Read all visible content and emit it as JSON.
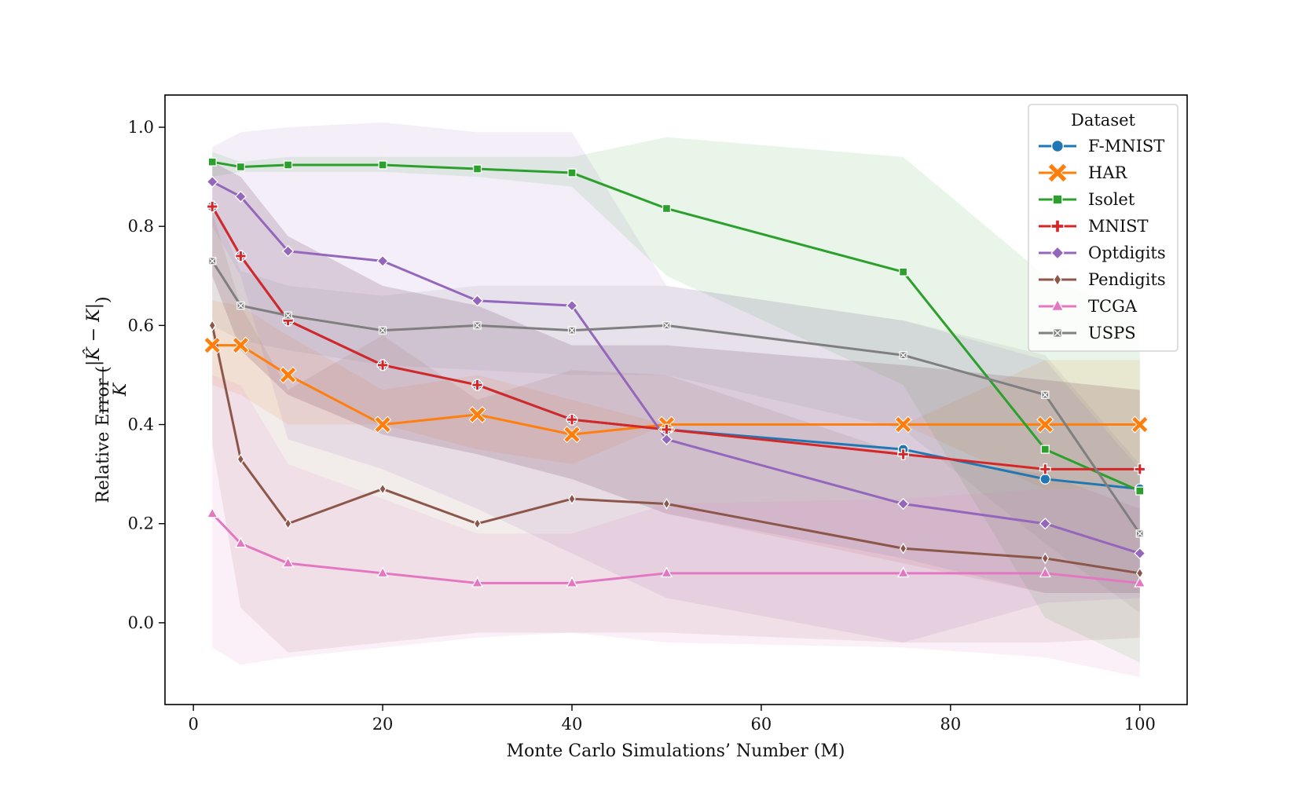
{
  "chart_data": {
    "type": "line",
    "title": "",
    "xlabel": "Monte Carlo Simulations’ Number (M)",
    "ylabel": {
      "prefix": "Relative Error (",
      "numerator": "|K̂ − K|",
      "denominator": "K",
      "suffix": ")"
    },
    "xlim": [
      -3,
      105
    ],
    "ylim": [
      -0.165,
      1.065
    ],
    "xticks": [
      0,
      20,
      40,
      60,
      80,
      100
    ],
    "yticks": [
      0.0,
      0.2,
      0.4,
      0.6,
      0.8,
      1.0
    ],
    "ytick_labels": [
      "0.0",
      "0.2",
      "0.4",
      "0.6",
      "0.8",
      "1.0"
    ],
    "x": [
      2,
      5,
      10,
      20,
      30,
      40,
      50,
      75,
      90,
      100
    ],
    "legend": {
      "title": "Dataset",
      "position": "top-right"
    },
    "series": [
      {
        "name": "F-MNIST",
        "color": "#1f77b4",
        "marker": "circle",
        "values": [
          0.84,
          0.74,
          0.61,
          0.52,
          0.48,
          0.41,
          0.39,
          0.35,
          0.29,
          0.27
        ],
        "lower": [
          0.7,
          0.55,
          0.46,
          0.38,
          0.34,
          0.29,
          0.22,
          0.13,
          0.06,
          0.06
        ],
        "upper": [
          0.93,
          0.9,
          0.78,
          0.68,
          0.64,
          0.56,
          0.56,
          0.52,
          0.49,
          0.47
        ]
      },
      {
        "name": "HAR",
        "color": "#ff7f0e",
        "marker": "x",
        "values": [
          0.56,
          0.56,
          0.5,
          0.4,
          0.42,
          0.38,
          0.4,
          0.4,
          0.4,
          0.4
        ],
        "lower": [
          0.48,
          0.46,
          0.4,
          0.4,
          0.35,
          0.32,
          0.4,
          0.4,
          0.27,
          0.27
        ],
        "upper": [
          0.65,
          0.64,
          0.58,
          0.47,
          0.5,
          0.45,
          0.4,
          0.4,
          0.53,
          0.53
        ]
      },
      {
        "name": "Isolet",
        "color": "#2ca02c",
        "marker": "square",
        "values": [
          0.93,
          0.92,
          0.924,
          0.924,
          0.916,
          0.908,
          0.836,
          0.708,
          0.35,
          0.266
        ],
        "lower": [
          0.9,
          0.91,
          0.91,
          0.91,
          0.9,
          0.88,
          0.7,
          0.48,
          0.01,
          -0.08
        ],
        "upper": [
          0.95,
          0.93,
          0.94,
          0.94,
          0.94,
          0.94,
          0.98,
          0.94,
          0.7,
          0.62
        ]
      },
      {
        "name": "MNIST",
        "color": "#d62728",
        "marker": "plus",
        "values": [
          0.84,
          0.74,
          0.61,
          0.52,
          0.48,
          0.41,
          0.39,
          0.34,
          0.31,
          0.31
        ],
        "lower": [
          0.7,
          0.55,
          0.46,
          0.38,
          0.34,
          0.29,
          0.22,
          0.12,
          0.06,
          0.06
        ],
        "upper": [
          0.93,
          0.9,
          0.78,
          0.68,
          0.64,
          0.56,
          0.56,
          0.52,
          0.49,
          0.47
        ]
      },
      {
        "name": "Optdigits",
        "color": "#9467bd",
        "marker": "diamond",
        "values": [
          0.89,
          0.86,
          0.75,
          0.73,
          0.65,
          0.64,
          0.37,
          0.24,
          0.2,
          0.14
        ],
        "lower": [
          0.8,
          0.7,
          0.37,
          0.31,
          0.23,
          0.14,
          0.05,
          -0.04,
          0.04,
          0.05
        ],
        "upper": [
          0.96,
          0.99,
          1.0,
          1.01,
          0.99,
          0.99,
          0.68,
          0.61,
          0.53,
          0.31
        ]
      },
      {
        "name": "Pendigits",
        "color": "#8c564b",
        "marker": "thin-diamond",
        "values": [
          0.6,
          0.33,
          0.2,
          0.27,
          0.2,
          0.25,
          0.24,
          0.15,
          0.13,
          0.1
        ],
        "lower": [
          0.36,
          0.03,
          -0.06,
          -0.04,
          -0.02,
          -0.02,
          -0.02,
          -0.04,
          -0.04,
          -0.03
        ],
        "upper": [
          0.83,
          0.64,
          0.47,
          0.58,
          0.45,
          0.51,
          0.5,
          0.34,
          0.3,
          0.23
        ]
      },
      {
        "name": "TCGA",
        "color": "#e377c2",
        "marker": "triangle",
        "values": [
          0.22,
          0.16,
          0.12,
          0.1,
          0.08,
          0.08,
          0.1,
          0.1,
          0.1,
          0.08
        ],
        "lower": [
          -0.05,
          -0.085,
          -0.07,
          -0.05,
          -0.03,
          -0.02,
          -0.04,
          -0.05,
          -0.07,
          -0.11
        ],
        "upper": [
          0.5,
          0.48,
          0.32,
          0.25,
          0.18,
          0.18,
          0.24,
          0.25,
          0.27,
          0.27
        ]
      },
      {
        "name": "USPS",
        "color": "#7f7f7f",
        "marker": "x-filled",
        "values": [
          0.73,
          0.64,
          0.62,
          0.59,
          0.6,
          0.59,
          0.6,
          0.54,
          0.46,
          0.18
        ],
        "lower": [
          0.6,
          0.57,
          0.55,
          0.52,
          0.51,
          0.5,
          0.5,
          0.39,
          0.16,
          0.02
        ],
        "upper": [
          0.85,
          0.71,
          0.68,
          0.66,
          0.68,
          0.68,
          0.68,
          0.61,
          0.54,
          0.32
        ]
      }
    ]
  }
}
